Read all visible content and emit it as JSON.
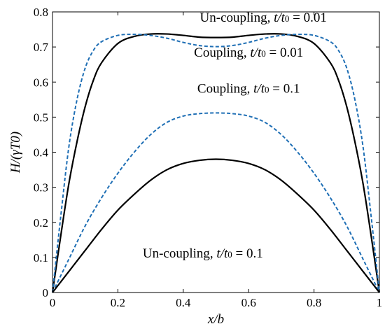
{
  "chart_data": {
    "type": "line",
    "xlabel": "x/b",
    "ylabel": "H/(γT0)",
    "xlim": [
      0,
      1
    ],
    "ylim": [
      0,
      0.8
    ],
    "xticks": [
      "0",
      "0.2",
      "0.4",
      "0.6",
      "0.8",
      "1"
    ],
    "yticks": [
      "0",
      "0.1",
      "0.2",
      "0.3",
      "0.4",
      "0.5",
      "0.6",
      "0.7",
      "0.8"
    ],
    "grid": false,
    "legend": "none",
    "series": [
      {
        "name": "Un-coupling, t/t0 = 0.01",
        "style": "solid",
        "color": "#000000",
        "x": [
          0,
          0.025,
          0.05,
          0.075,
          0.1,
          0.125,
          0.15,
          0.2,
          0.25,
          0.3,
          0.35,
          0.4,
          0.45,
          0.5,
          0.55,
          0.6,
          0.65,
          0.7,
          0.75,
          0.8,
          0.85,
          0.875,
          0.9,
          0.925,
          0.95,
          0.975,
          1
        ],
        "y": [
          0,
          0.16,
          0.31,
          0.43,
          0.53,
          0.605,
          0.655,
          0.71,
          0.73,
          0.737,
          0.737,
          0.733,
          0.728,
          0.727,
          0.728,
          0.733,
          0.737,
          0.737,
          0.73,
          0.71,
          0.655,
          0.605,
          0.53,
          0.43,
          0.31,
          0.16,
          0
        ]
      },
      {
        "name": "Coupling, t/t0 = 0.01",
        "style": "dashed",
        "color": "#1f6fb5",
        "x": [
          0,
          0.025,
          0.05,
          0.075,
          0.1,
          0.125,
          0.15,
          0.2,
          0.25,
          0.3,
          0.35,
          0.4,
          0.45,
          0.5,
          0.55,
          0.6,
          0.65,
          0.7,
          0.75,
          0.8,
          0.85,
          0.875,
          0.9,
          0.925,
          0.95,
          0.975,
          1
        ],
        "y": [
          0,
          0.215,
          0.415,
          0.55,
          0.64,
          0.69,
          0.715,
          0.733,
          0.736,
          0.733,
          0.725,
          0.713,
          0.704,
          0.701,
          0.704,
          0.713,
          0.725,
          0.733,
          0.736,
          0.733,
          0.715,
          0.69,
          0.64,
          0.55,
          0.415,
          0.215,
          0
        ]
      },
      {
        "name": "Coupling, t/t0 = 0.1",
        "style": "dashed",
        "color": "#1f6fb5",
        "x": [
          0,
          0.05,
          0.1,
          0.15,
          0.2,
          0.25,
          0.3,
          0.35,
          0.4,
          0.45,
          0.5,
          0.55,
          0.6,
          0.65,
          0.7,
          0.75,
          0.8,
          0.85,
          0.9,
          0.95,
          1
        ],
        "y": [
          0,
          0.095,
          0.19,
          0.27,
          0.34,
          0.4,
          0.45,
          0.485,
          0.503,
          0.51,
          0.512,
          0.51,
          0.503,
          0.485,
          0.45,
          0.4,
          0.34,
          0.27,
          0.19,
          0.095,
          0
        ]
      },
      {
        "name": "Un-coupling, t/t0 = 0.1",
        "style": "solid",
        "color": "#000000",
        "x": [
          0,
          0.05,
          0.1,
          0.15,
          0.2,
          0.25,
          0.3,
          0.35,
          0.4,
          0.45,
          0.5,
          0.55,
          0.6,
          0.65,
          0.7,
          0.75,
          0.8,
          0.85,
          0.9,
          0.95,
          1
        ],
        "y": [
          0,
          0.06,
          0.12,
          0.18,
          0.235,
          0.28,
          0.32,
          0.35,
          0.368,
          0.377,
          0.38,
          0.377,
          0.368,
          0.35,
          0.32,
          0.28,
          0.235,
          0.18,
          0.12,
          0.06,
          0
        ]
      }
    ],
    "annotations": [
      {
        "prefix": "Un-coupling, ",
        "var": "t/t",
        "sub": "0",
        "suffix": " = 0.01",
        "x": 0.645,
        "y": 0.772
      },
      {
        "prefix": "Coupling, ",
        "var": "t/t",
        "sub": "0",
        "suffix": " = 0.01",
        "x": 0.6,
        "y": 0.672
      },
      {
        "prefix": "Coupling, ",
        "var": "t/t",
        "sub": "0",
        "suffix": " = 0.1",
        "x": 0.6,
        "y": 0.57
      },
      {
        "prefix": "Un-coupling, ",
        "var": "t/t",
        "sub": "0",
        "suffix": " = 0.1",
        "x": 0.46,
        "y": 0.1
      }
    ]
  }
}
